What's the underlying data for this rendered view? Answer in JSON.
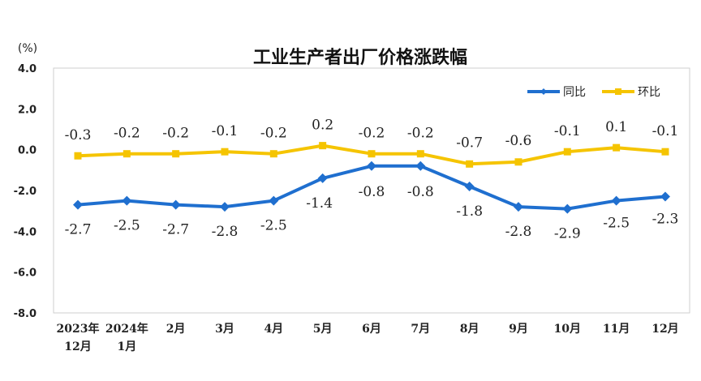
{
  "chart_data": {
    "type": "line",
    "title": "工业生产者出厂价格涨跌幅",
    "ylabel": "(%)",
    "xlabel": "",
    "ylim": [
      -8.0,
      4.0
    ],
    "ytick_values": [
      4.0,
      2.0,
      0.0,
      -2.0,
      -4.0,
      -6.0,
      -8.0
    ],
    "ytick_labels": [
      "4.0",
      "2.0",
      "0.0",
      "-2.0",
      "-4.0",
      "-6.0",
      "-8.0"
    ],
    "categories": [
      [
        "2023年",
        "12月"
      ],
      [
        "2024年",
        "1月"
      ],
      [
        "2月"
      ],
      [
        "3月"
      ],
      [
        "4月"
      ],
      [
        "5月"
      ],
      [
        "6月"
      ],
      [
        "7月"
      ],
      [
        "8月"
      ],
      [
        "9月"
      ],
      [
        "10月"
      ],
      [
        "11月"
      ],
      [
        "12月"
      ]
    ],
    "grid": false,
    "legend_position": "top-right",
    "series": [
      {
        "name": "同比",
        "color": "#1f6fcf",
        "marker": "diamond",
        "values": [
          -2.7,
          -2.5,
          -2.7,
          -2.8,
          -2.5,
          -1.4,
          -0.8,
          -0.8,
          -1.8,
          -2.8,
          -2.9,
          -2.5,
          -2.3
        ],
        "labels": [
          "-2.7",
          "-2.5",
          "-2.7",
          "-2.8",
          "-2.5",
          "-1.4",
          "-0.8",
          "-0.8",
          "-1.8",
          "-2.8",
          "-2.9",
          "-2.5",
          "-2.3"
        ]
      },
      {
        "name": "环比",
        "color": "#f5c400",
        "marker": "square",
        "values": [
          -0.3,
          -0.2,
          -0.2,
          -0.1,
          -0.2,
          0.2,
          -0.2,
          -0.2,
          -0.7,
          -0.6,
          -0.1,
          0.1,
          -0.1
        ],
        "labels": [
          "-0.3",
          "-0.2",
          "-0.2",
          "-0.1",
          "-0.2",
          "0.2",
          "-0.2",
          "-0.2",
          "-0.7",
          "-0.6",
          "-0.1",
          "0.1",
          "-0.1"
        ]
      }
    ]
  }
}
